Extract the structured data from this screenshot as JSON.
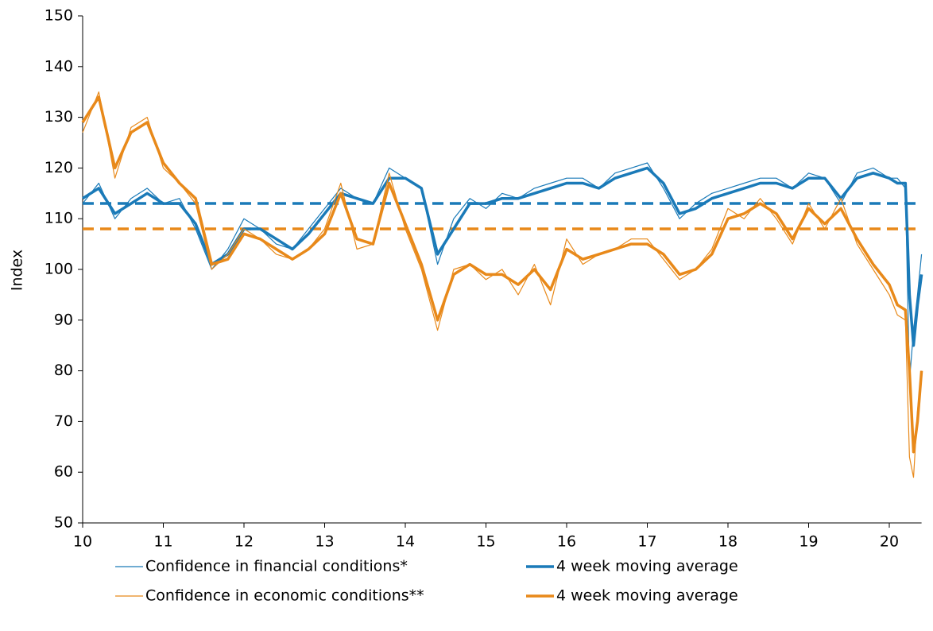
{
  "chart_data": {
    "type": "line",
    "y_label": "Index",
    "xlim": [
      10,
      20.4
    ],
    "xticks": [
      10,
      11,
      12,
      13,
      14,
      15,
      16,
      17,
      18,
      19,
      20
    ],
    "ylim": [
      50,
      150
    ],
    "yticks": [
      50,
      60,
      70,
      80,
      90,
      100,
      110,
      120,
      130,
      140,
      150
    ],
    "x": [
      10,
      10.2,
      10.4,
      10.6,
      10.8,
      11,
      11.2,
      11.4,
      11.6,
      11.8,
      12,
      12.2,
      12.4,
      12.6,
      12.8,
      13,
      13.2,
      13.4,
      13.6,
      13.8,
      14,
      14.2,
      14.4,
      14.6,
      14.8,
      15,
      15.2,
      15.4,
      15.6,
      15.8,
      16,
      16.2,
      16.4,
      16.6,
      16.8,
      17,
      17.2,
      17.4,
      17.6,
      17.8,
      18,
      18.2,
      18.4,
      18.6,
      18.8,
      19,
      19.2,
      19.4,
      19.6,
      19.8,
      20,
      20.1,
      20.2,
      20.25,
      20.3,
      20.35,
      20.4
    ],
    "series": [
      {
        "name": "Confidence in financial conditions*",
        "color": "#1a7ab8",
        "width": 1.2,
        "values": [
          113,
          117,
          110,
          114,
          116,
          113,
          114,
          108,
          100,
          104,
          110,
          108,
          105,
          104,
          108,
          112,
          116,
          114,
          113,
          120,
          118,
          116,
          101,
          110,
          114,
          112,
          115,
          114,
          116,
          117,
          118,
          118,
          116,
          119,
          120,
          121,
          116,
          110,
          113,
          115,
          116,
          117,
          118,
          118,
          116,
          119,
          118,
          113,
          119,
          120,
          118,
          118,
          116,
          78,
          88,
          95,
          103
        ]
      },
      {
        "name": "4 week moving average",
        "color": "#1a7ab8",
        "width": 3.5,
        "values": [
          114,
          116,
          111,
          113,
          115,
          113,
          113,
          109,
          101,
          103,
          108,
          108,
          106,
          104,
          107,
          111,
          115,
          114,
          113,
          118,
          118,
          116,
          103,
          108,
          113,
          113,
          114,
          114,
          115,
          116,
          117,
          117,
          116,
          118,
          119,
          120,
          117,
          111,
          112,
          114,
          115,
          116,
          117,
          117,
          116,
          118,
          118,
          114,
          118,
          119,
          118,
          117,
          117,
          95,
          85,
          93,
          99
        ]
      },
      {
        "name": "Confidence in economic conditions**",
        "color": "#e8891a",
        "width": 1.2,
        "values": [
          127,
          135,
          118,
          128,
          130,
          120,
          117,
          113,
          100,
          103,
          108,
          106,
          103,
          102,
          104,
          108,
          117,
          104,
          105,
          119,
          108,
          100,
          88,
          100,
          101,
          98,
          100,
          95,
          101,
          93,
          106,
          101,
          103,
          104,
          106,
          106,
          102,
          98,
          100,
          104,
          112,
          110,
          114,
          110,
          105,
          113,
          108,
          114,
          105,
          100,
          95,
          91,
          90,
          63,
          59,
          72,
          80
        ]
      },
      {
        "name": "4 week moving average",
        "color": "#e8891a",
        "width": 3.5,
        "values": [
          129,
          134,
          120,
          127,
          129,
          121,
          117,
          114,
          101,
          102,
          107,
          106,
          104,
          102,
          104,
          107,
          115,
          106,
          105,
          117,
          109,
          101,
          90,
          99,
          101,
          99,
          99,
          97,
          100,
          96,
          104,
          102,
          103,
          104,
          105,
          105,
          103,
          99,
          100,
          103,
          110,
          111,
          113,
          111,
          106,
          112,
          109,
          112,
          106,
          101,
          97,
          93,
          92,
          80,
          64,
          70,
          80
        ]
      }
    ],
    "reference_lines": [
      {
        "value": 113,
        "color": "#1a7ab8",
        "style": "dashed"
      },
      {
        "value": 108,
        "color": "#e8891a",
        "style": "dashed"
      }
    ]
  }
}
